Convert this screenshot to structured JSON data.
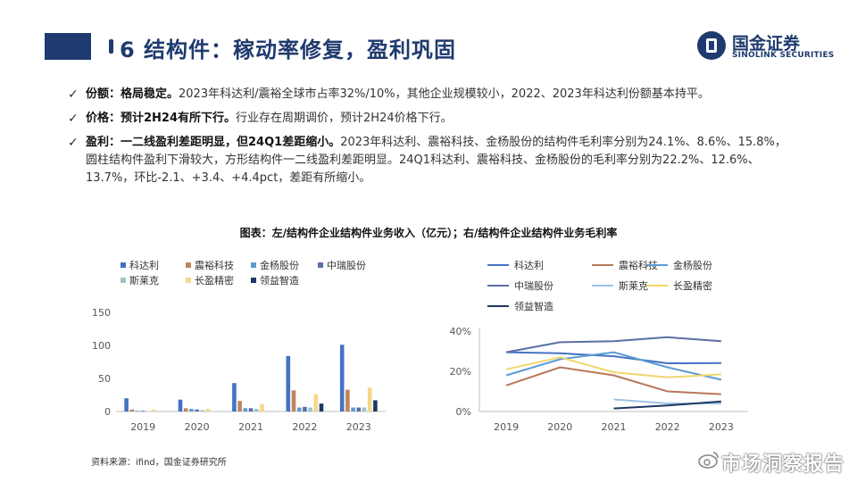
{
  "header": {
    "title": "6 结构件：稼动率修复，盈利巩固",
    "logo_cn": "国金证券",
    "logo_en": "SINOLINK SECURITIES"
  },
  "bullets": [
    {
      "head": "份额：格局稳定。",
      "text": "2023年科达利/震裕全球市占率32%/10%，其他企业规模较小，2022、2023年科达利份额基本持平。"
    },
    {
      "head": "价格：预计2H24有所下行。",
      "text": "行业存在周期调价，预计2H24价格下行。"
    },
    {
      "head": "盈利：一二线盈利差距明显，但24Q1差距缩小。",
      "text": "2023年科达利、震裕科技、金杨股份的结构件毛利率分别为24.1%、8.6%、15.8%，圆柱结构件盈利下滑较大，方形结构件一二线盈利差距明显。24Q1科达利、震裕科技、金杨股份的毛利率分别为22.2%、12.6%、13.7%，环比-2.1、+3.4、+4.4pct，差距有所缩小。"
    }
  ],
  "figure_title": "图表：左/结构件企业结构件业务收入（亿元）；右/结构件企业结构件业务毛利率",
  "source": "资料来源：ifind，国金证券研究所",
  "watermark": "市场洞察报告",
  "colors": {
    "brand": "#1f3a6e"
  },
  "chart_data": [
    {
      "type": "bar",
      "categories": [
        "2019",
        "2020",
        "2021",
        "2022",
        "2023"
      ],
      "ylim": [
        0,
        150
      ],
      "yticks": [
        "0",
        "50",
        "100",
        "150"
      ],
      "series": [
        {
          "name": "科达利",
          "color": "#4472c4",
          "values": [
            20,
            18,
            43,
            84,
            101
          ]
        },
        {
          "name": "震裕科技",
          "color": "#c0855e",
          "values": [
            3,
            5,
            16,
            32,
            33
          ]
        },
        {
          "name": "金杨股份",
          "color": "#5b9bd5",
          "values": [
            1,
            4,
            5,
            6,
            6
          ]
        },
        {
          "name": "中瑞股份",
          "color": "#5b6fa8",
          "values": [
            1,
            3,
            5,
            7,
            6
          ]
        },
        {
          "name": "斯莱克",
          "color": "#9dc3c8",
          "values": [
            0,
            2,
            4,
            6,
            6
          ]
        },
        {
          "name": "长盈精密",
          "color": "#f5d78a",
          "values": [
            3,
            4,
            11,
            26,
            36
          ]
        },
        {
          "name": "领益智造",
          "color": "#1f3864",
          "values": [
            0,
            0,
            0,
            12,
            17
          ]
        }
      ]
    },
    {
      "type": "line",
      "categories": [
        "2019",
        "2020",
        "2021",
        "2022",
        "2023"
      ],
      "ylim": [
        0,
        40
      ],
      "yticks": [
        "0%",
        "20%",
        "40%"
      ],
      "series": [
        {
          "name": "科达利",
          "color": "#4472c4",
          "values": [
            29.5,
            29,
            27.5,
            24,
            24.1
          ]
        },
        {
          "name": "震裕科技",
          "color": "#b9775a",
          "values": [
            13,
            22,
            18,
            10,
            8.6
          ]
        },
        {
          "name": "金杨股份",
          "color": "#5b9bd5",
          "values": [
            18,
            26,
            29.5,
            22,
            15.8
          ]
        },
        {
          "name": "中瑞股份",
          "color": "#5b6fa8",
          "values": [
            29.5,
            34.5,
            35,
            37,
            35
          ]
        },
        {
          "name": "斯莱克",
          "color": "#9dc3e6",
          "values": [
            null,
            null,
            6,
            4,
            4
          ]
        },
        {
          "name": "长盈精密",
          "color": "#f2d66b",
          "values": [
            21,
            27,
            19.5,
            17,
            18.5
          ]
        },
        {
          "name": "领益智造",
          "color": "#1f3864",
          "values": [
            null,
            null,
            1.5,
            3,
            5
          ]
        }
      ]
    }
  ]
}
